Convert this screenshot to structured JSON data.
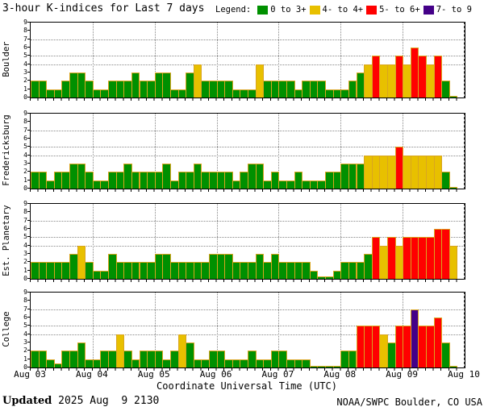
{
  "title": "3-hour K-indices for Last 7 days",
  "legend": {
    "label": "Legend:",
    "items": [
      {
        "label": "0 to 3+",
        "color": "#009000"
      },
      {
        "label": "4- to 4+",
        "color": "#e8c000"
      },
      {
        "label": "5- to 6+",
        "color": "#ff0000"
      },
      {
        "label": "7- to 9",
        "color": "#440088"
      }
    ]
  },
  "colors": {
    "green": "#009000",
    "yellow": "#e8c000",
    "red": "#ff0000",
    "purple": "#440088",
    "bar_border": "#d9a520"
  },
  "x_axis": {
    "tick_labels": [
      "Aug 03",
      "Aug 04",
      "Aug 05",
      "Aug 06",
      "Aug 07",
      "Aug 08",
      "Aug 09",
      "Aug 10"
    ],
    "title": "Coordinate Universal Time (UTC)"
  },
  "y_axis": {
    "ticks": [
      0,
      1,
      2,
      3,
      4,
      5,
      6,
      7,
      8,
      9
    ],
    "gridlines": [
      4,
      5,
      7
    ],
    "range": [
      0,
      9
    ]
  },
  "footer": {
    "updated_label": "Updated",
    "updated_value": " 2025 Aug  9 2130",
    "credit": "NOAA/SWPC Boulder, CO USA"
  },
  "chart_data": [
    {
      "type": "bar",
      "station": "Boulder",
      "bars_per_day": 8,
      "days": 7,
      "values": [
        2,
        2,
        1,
        1,
        2,
        3,
        3,
        2,
        1,
        1,
        2,
        2,
        2,
        3,
        2,
        2,
        3,
        3,
        1,
        1,
        3,
        4,
        2,
        2,
        2,
        2,
        1,
        1,
        1,
        4,
        2,
        2,
        2,
        2,
        1,
        2,
        2,
        2,
        1,
        1,
        1,
        2,
        3,
        4,
        5,
        4,
        4,
        5,
        4,
        6,
        5,
        4,
        5,
        2,
        0.2
      ]
    },
    {
      "type": "bar",
      "station": "Fredericksburg",
      "bars_per_day": 8,
      "days": 7,
      "values": [
        2,
        2,
        1,
        2,
        2,
        3,
        3,
        2,
        1,
        1,
        2,
        2,
        3,
        2,
        2,
        2,
        2,
        3,
        1,
        2,
        2,
        3,
        2,
        2,
        2,
        2,
        1,
        2,
        3,
        3,
        1,
        2,
        1,
        1,
        2,
        1,
        1,
        1,
        2,
        2,
        3,
        3,
        3,
        4,
        4,
        4,
        4,
        5,
        4,
        4,
        4,
        4,
        4,
        2,
        0.2
      ]
    },
    {
      "type": "bar",
      "station": "Est. Planetary",
      "bars_per_day": 8,
      "days": 7,
      "values": [
        2,
        2,
        2,
        2,
        2,
        3,
        4,
        2,
        1,
        1,
        3,
        2,
        2,
        2,
        2,
        2,
        3,
        3,
        2,
        2,
        2,
        2,
        2,
        3,
        3,
        3,
        2,
        2,
        2,
        3,
        2,
        3,
        2,
        2,
        2,
        2,
        1,
        0.3,
        0.3,
        1,
        2,
        2,
        2,
        3,
        5,
        4,
        5,
        4,
        5,
        5,
        5,
        5,
        6,
        6,
        4
      ]
    },
    {
      "type": "bar",
      "station": "College",
      "bars_per_day": 8,
      "days": 7,
      "values": [
        2,
        2,
        1,
        0.5,
        2,
        2,
        3,
        1,
        1,
        2,
        2,
        4,
        2,
        1,
        2,
        2,
        2,
        1,
        2,
        4,
        3,
        1,
        1,
        2,
        2,
        1,
        1,
        1,
        2,
        1,
        1,
        2,
        2,
        1,
        1,
        1,
        0.2,
        0.2,
        0.2,
        0.2,
        2,
        2,
        5,
        5,
        5,
        4,
        3,
        5,
        5,
        7,
        5,
        5,
        6,
        3,
        0.2
      ]
    }
  ]
}
